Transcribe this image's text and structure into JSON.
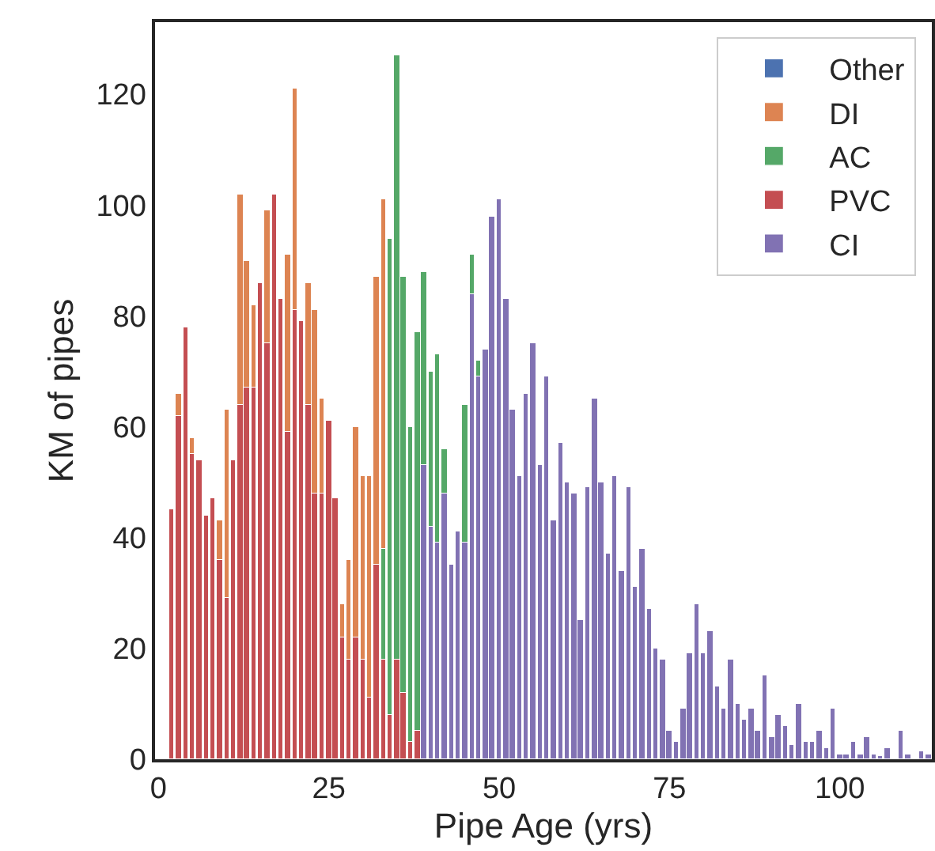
{
  "chart_data": {
    "type": "bar",
    "stacked": true,
    "xlabel": "Pipe Age (yrs)",
    "ylabel": "KM of pipes",
    "xlim": [
      -0.5,
      113.5
    ],
    "xticks": [
      0,
      25,
      50,
      75,
      100
    ],
    "ylim": [
      0,
      133
    ],
    "yticks": [
      0,
      20,
      40,
      60,
      80,
      100,
      120
    ],
    "grid": false,
    "legend": "top right",
    "x": [
      2,
      3,
      4,
      5,
      6,
      7,
      8,
      9,
      10,
      11,
      12,
      13,
      14,
      15,
      16,
      17,
      18,
      19,
      20,
      21,
      22,
      23,
      24,
      25,
      26,
      27,
      28,
      29,
      30,
      31,
      32,
      33,
      34,
      35,
      36,
      37,
      38,
      39,
      40,
      41,
      42,
      43,
      44,
      45,
      46,
      47,
      48,
      49,
      50,
      51,
      52,
      53,
      54,
      55,
      56,
      57,
      58,
      59,
      60,
      61,
      62,
      63,
      64,
      65,
      66,
      67,
      68,
      69,
      70,
      71,
      72,
      73,
      74,
      75,
      76,
      77,
      78,
      79,
      80,
      81,
      82,
      83,
      84,
      85,
      86,
      87,
      88,
      89,
      90,
      91,
      92,
      93,
      94,
      95,
      96,
      97,
      98,
      99,
      100,
      101,
      102,
      103,
      104,
      105,
      106,
      107,
      108,
      109,
      110,
      111,
      112,
      113
    ],
    "series": [
      {
        "name": "CI",
        "color": "#8172b3",
        "values": [
          null,
          null,
          null,
          null,
          null,
          null,
          null,
          null,
          null,
          null,
          null,
          null,
          null,
          null,
          null,
          null,
          null,
          null,
          null,
          null,
          null,
          null,
          null,
          null,
          null,
          null,
          null,
          null,
          null,
          null,
          null,
          null,
          null,
          null,
          null,
          null,
          null,
          53,
          42,
          39,
          48,
          35,
          41,
          39,
          84,
          69,
          74,
          98,
          101,
          83,
          63,
          51,
          66,
          75,
          53,
          69,
          43,
          57,
          50,
          48,
          25,
          49,
          65,
          50,
          37,
          51,
          34,
          49,
          31,
          38,
          27,
          20,
          18,
          5,
          3,
          9,
          19,
          28,
          19,
          23,
          13,
          9,
          18,
          10,
          7,
          9,
          5,
          15,
          4,
          8,
          6,
          2.5,
          10,
          3,
          3,
          5,
          2,
          9,
          1,
          1,
          3,
          1,
          4,
          1,
          0.5,
          2,
          null,
          5,
          1,
          null,
          1.5,
          1
        ]
      },
      {
        "name": "PVC",
        "color": "#c44e52",
        "values": [
          45,
          62,
          78,
          55,
          54,
          44,
          47,
          36,
          29,
          54,
          64,
          67,
          67,
          86,
          75,
          102,
          83,
          59,
          81,
          79,
          64,
          48,
          48,
          61,
          47,
          22,
          18,
          22,
          18,
          11,
          35,
          18,
          8,
          18,
          12,
          3,
          5,
          null,
          null,
          null,
          null,
          null,
          null,
          null,
          null,
          null,
          null,
          null,
          null,
          null,
          null,
          null,
          null,
          null,
          null,
          null,
          null,
          null,
          null,
          null,
          null,
          null,
          null,
          null,
          null,
          null,
          null,
          null,
          null,
          null,
          null,
          null,
          null,
          null,
          null,
          null,
          null,
          null,
          null,
          null,
          null,
          null,
          null,
          null,
          null,
          null,
          null,
          null,
          null,
          null,
          null,
          null,
          null,
          null,
          null,
          null,
          null,
          null,
          null,
          null,
          null,
          null,
          null,
          null,
          null,
          null,
          null,
          null,
          null,
          null,
          null,
          null
        ]
      },
      {
        "name": "AC",
        "color": "#55a868",
        "values": [
          null,
          null,
          null,
          null,
          null,
          null,
          null,
          null,
          null,
          null,
          null,
          null,
          null,
          null,
          null,
          null,
          null,
          null,
          null,
          null,
          null,
          null,
          null,
          null,
          null,
          null,
          null,
          null,
          null,
          null,
          null,
          20,
          86,
          109,
          75,
          57,
          72,
          35,
          28,
          34,
          8,
          null,
          null,
          25,
          7,
          3,
          null,
          null,
          null,
          null,
          null,
          null,
          null,
          null,
          null,
          null,
          null,
          null,
          null,
          null,
          null,
          null,
          null,
          null,
          null,
          null,
          null,
          null,
          null,
          null,
          null,
          null,
          null,
          null,
          null,
          null,
          null,
          null,
          null,
          null,
          null,
          null,
          null,
          null,
          null,
          null,
          null,
          null,
          null,
          null,
          null,
          null,
          null,
          null,
          null,
          null,
          null,
          null,
          null,
          null,
          null,
          null,
          null,
          null,
          null,
          null,
          null,
          null,
          null,
          null,
          null,
          null
        ]
      },
      {
        "name": "DI",
        "color": "#dd8452",
        "values": [
          null,
          4,
          null,
          3,
          null,
          null,
          null,
          7,
          34,
          null,
          38,
          23,
          15,
          null,
          24,
          null,
          null,
          32,
          40,
          null,
          22,
          33,
          17,
          null,
          null,
          6,
          18,
          38,
          33,
          40,
          52,
          63,
          null,
          null,
          null,
          null,
          null,
          null,
          null,
          null,
          null,
          null,
          null,
          null,
          null,
          null,
          null,
          null,
          null,
          null,
          null,
          null,
          null,
          null,
          null,
          null,
          null,
          null,
          null,
          null,
          null,
          null,
          null,
          null,
          null,
          null,
          null,
          null,
          null,
          null,
          null,
          null,
          null,
          null,
          null,
          null,
          null,
          null,
          null,
          null,
          null,
          null,
          null,
          null,
          null,
          null,
          null,
          null,
          null,
          null,
          null,
          null,
          null,
          null,
          null,
          null,
          null,
          null,
          null,
          null,
          null,
          null,
          null,
          null,
          null,
          null,
          null,
          null,
          null,
          null,
          null,
          null
        ]
      },
      {
        "name": "Other",
        "color": "#4c72b0",
        "values": [
          null,
          null,
          null,
          null,
          null,
          null,
          null,
          null,
          null,
          null,
          null,
          null,
          null,
          null,
          null,
          null,
          null,
          null,
          null,
          null,
          null,
          null,
          null,
          null,
          null,
          null,
          null,
          null,
          null,
          null,
          null,
          null,
          null,
          null,
          null,
          null,
          null,
          null,
          null,
          null,
          null,
          null,
          null,
          null,
          null,
          null,
          null,
          null,
          null,
          null,
          null,
          null,
          null,
          null,
          null,
          null,
          null,
          null,
          null,
          null,
          null,
          null,
          null,
          null,
          null,
          null,
          null,
          null,
          null,
          null,
          null,
          null,
          null,
          null,
          null,
          null,
          null,
          null,
          null,
          null,
          null,
          null,
          null,
          null,
          null,
          null,
          null,
          null,
          null,
          null,
          null,
          null,
          null,
          null,
          null,
          null,
          null,
          null,
          null,
          null,
          null,
          null,
          null,
          null,
          null,
          null,
          null,
          null,
          null,
          null,
          null,
          null
        ]
      }
    ]
  }
}
